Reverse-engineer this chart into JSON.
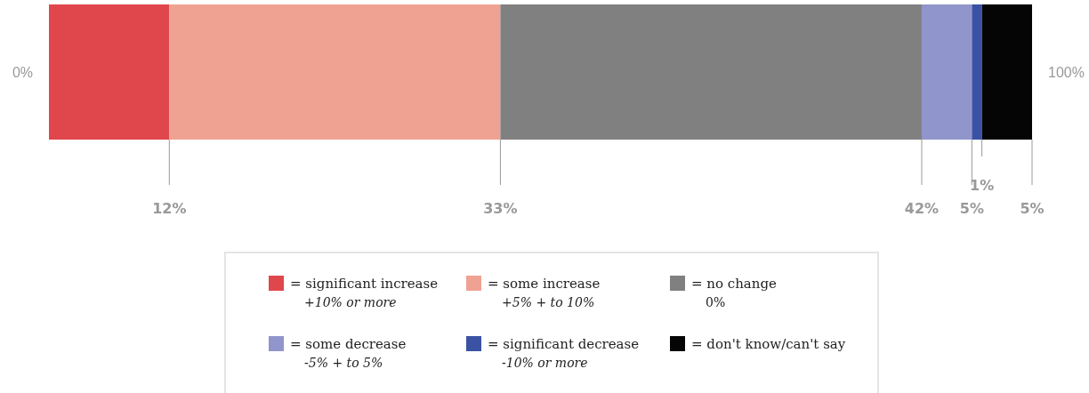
{
  "chart_data": {
    "type": "bar",
    "orientation": "horizontal",
    "stacked": true,
    "categories": [
      null
    ],
    "series": [
      {
        "name": "= significant increase",
        "color": "#e0474c",
        "values": [
          12
        ],
        "value_labels": [
          "12%"
        ]
      },
      {
        "name": "= some increase",
        "color": "#f0a292",
        "values": [
          33
        ],
        "value_labels": [
          "33%"
        ]
      },
      {
        "name": "= no change",
        "color": "#808080",
        "values": [
          42
        ],
        "value_labels": [
          "42%"
        ]
      },
      {
        "name": "= some decrease",
        "color": "#9095cb",
        "values": [
          5
        ],
        "value_labels": [
          "5%"
        ]
      },
      {
        "name": "= significant decrease",
        "color": "#3a52a3",
        "values": [
          1
        ],
        "value_labels": [
          "1%"
        ]
      },
      {
        "name": "= don't know/can't say",
        "color": "#050505",
        "values": [
          5
        ],
        "value_labels": [
          "5%"
        ]
      }
    ],
    "legend": "bottom",
    "annotations": [
      "0%",
      "100%",
      "+10% or more",
      "+5% + to 10%",
      "0%",
      "-5% + to 5%",
      "-10% or more"
    ]
  }
}
